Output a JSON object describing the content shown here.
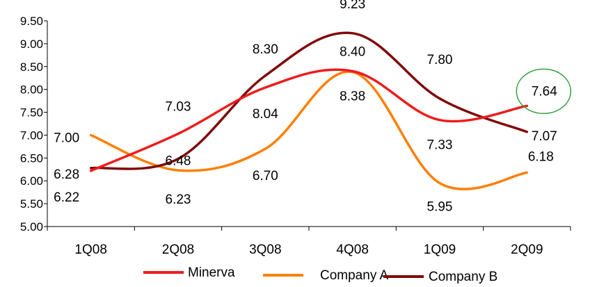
{
  "chart_data": {
    "type": "line",
    "title": "",
    "xlabel": "",
    "ylabel": "",
    "categories": [
      "1Q08",
      "2Q08",
      "3Q08",
      "4Q08",
      "1Q09",
      "2Q09"
    ],
    "ylim": [
      5.0,
      9.5
    ],
    "y_ticks": [
      "5.00",
      "5.50",
      "6.00",
      "6.50",
      "7.00",
      "7.50",
      "8.00",
      "8.50",
      "9.00",
      "9.50"
    ],
    "grid": false,
    "legend_position": "bottom",
    "smooth": true,
    "series": [
      {
        "name": "Minerva",
        "color": "#ee1c1c",
        "values": [
          6.22,
          7.03,
          8.04,
          8.4,
          7.33,
          7.64
        ],
        "labels": [
          "6.22",
          "7.03",
          "8.04",
          "8.40",
          "7.33",
          "7.64"
        ]
      },
      {
        "name": "Company A",
        "color": "#ff7f00",
        "values": [
          7.0,
          6.23,
          6.7,
          8.38,
          5.95,
          6.18
        ],
        "labels": [
          "7.00",
          "6.23",
          "6.70",
          "8.38",
          "5.95",
          "6.18"
        ]
      },
      {
        "name": "Company B",
        "color": "#7f0a0a",
        "values": [
          6.28,
          6.48,
          8.3,
          9.23,
          7.8,
          7.07
        ],
        "labels": [
          "6.28",
          "6.48",
          "8.30",
          "9.23",
          "7.80",
          "7.07"
        ]
      }
    ],
    "highlight": {
      "series": "Minerva",
      "category": "2Q09",
      "color": "#2e9e3e"
    }
  }
}
